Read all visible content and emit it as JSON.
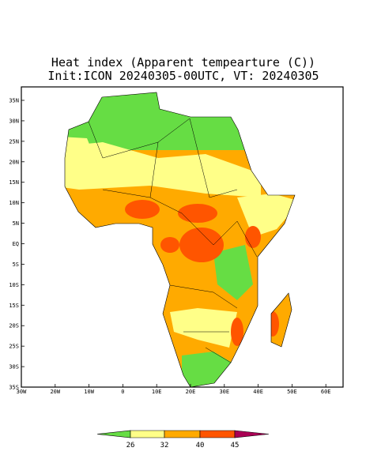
{
  "title": [
    "Heat index (Apparent tempearture (C))",
    "Init:ICON 20240305-00UTC, VT: 20240305"
  ],
  "map": {
    "lat_ticks": [
      "35N",
      "30N",
      "25N",
      "20N",
      "15N",
      "10N",
      "5N",
      "EQ",
      "5S",
      "10S",
      "15S",
      "20S",
      "25S",
      "30S",
      "35S"
    ],
    "lon_ticks": [
      "30W",
      "20W",
      "10W",
      0,
      "10E",
      "20E",
      "30E",
      "40E",
      "50E",
      "60E"
    ]
  },
  "colorbar": {
    "colors": [
      "#66dd44",
      "#ffff88",
      "#ffaa00",
      "#ff5500",
      "#aa0055"
    ],
    "labels": [
      26,
      32,
      40,
      45
    ]
  }
}
